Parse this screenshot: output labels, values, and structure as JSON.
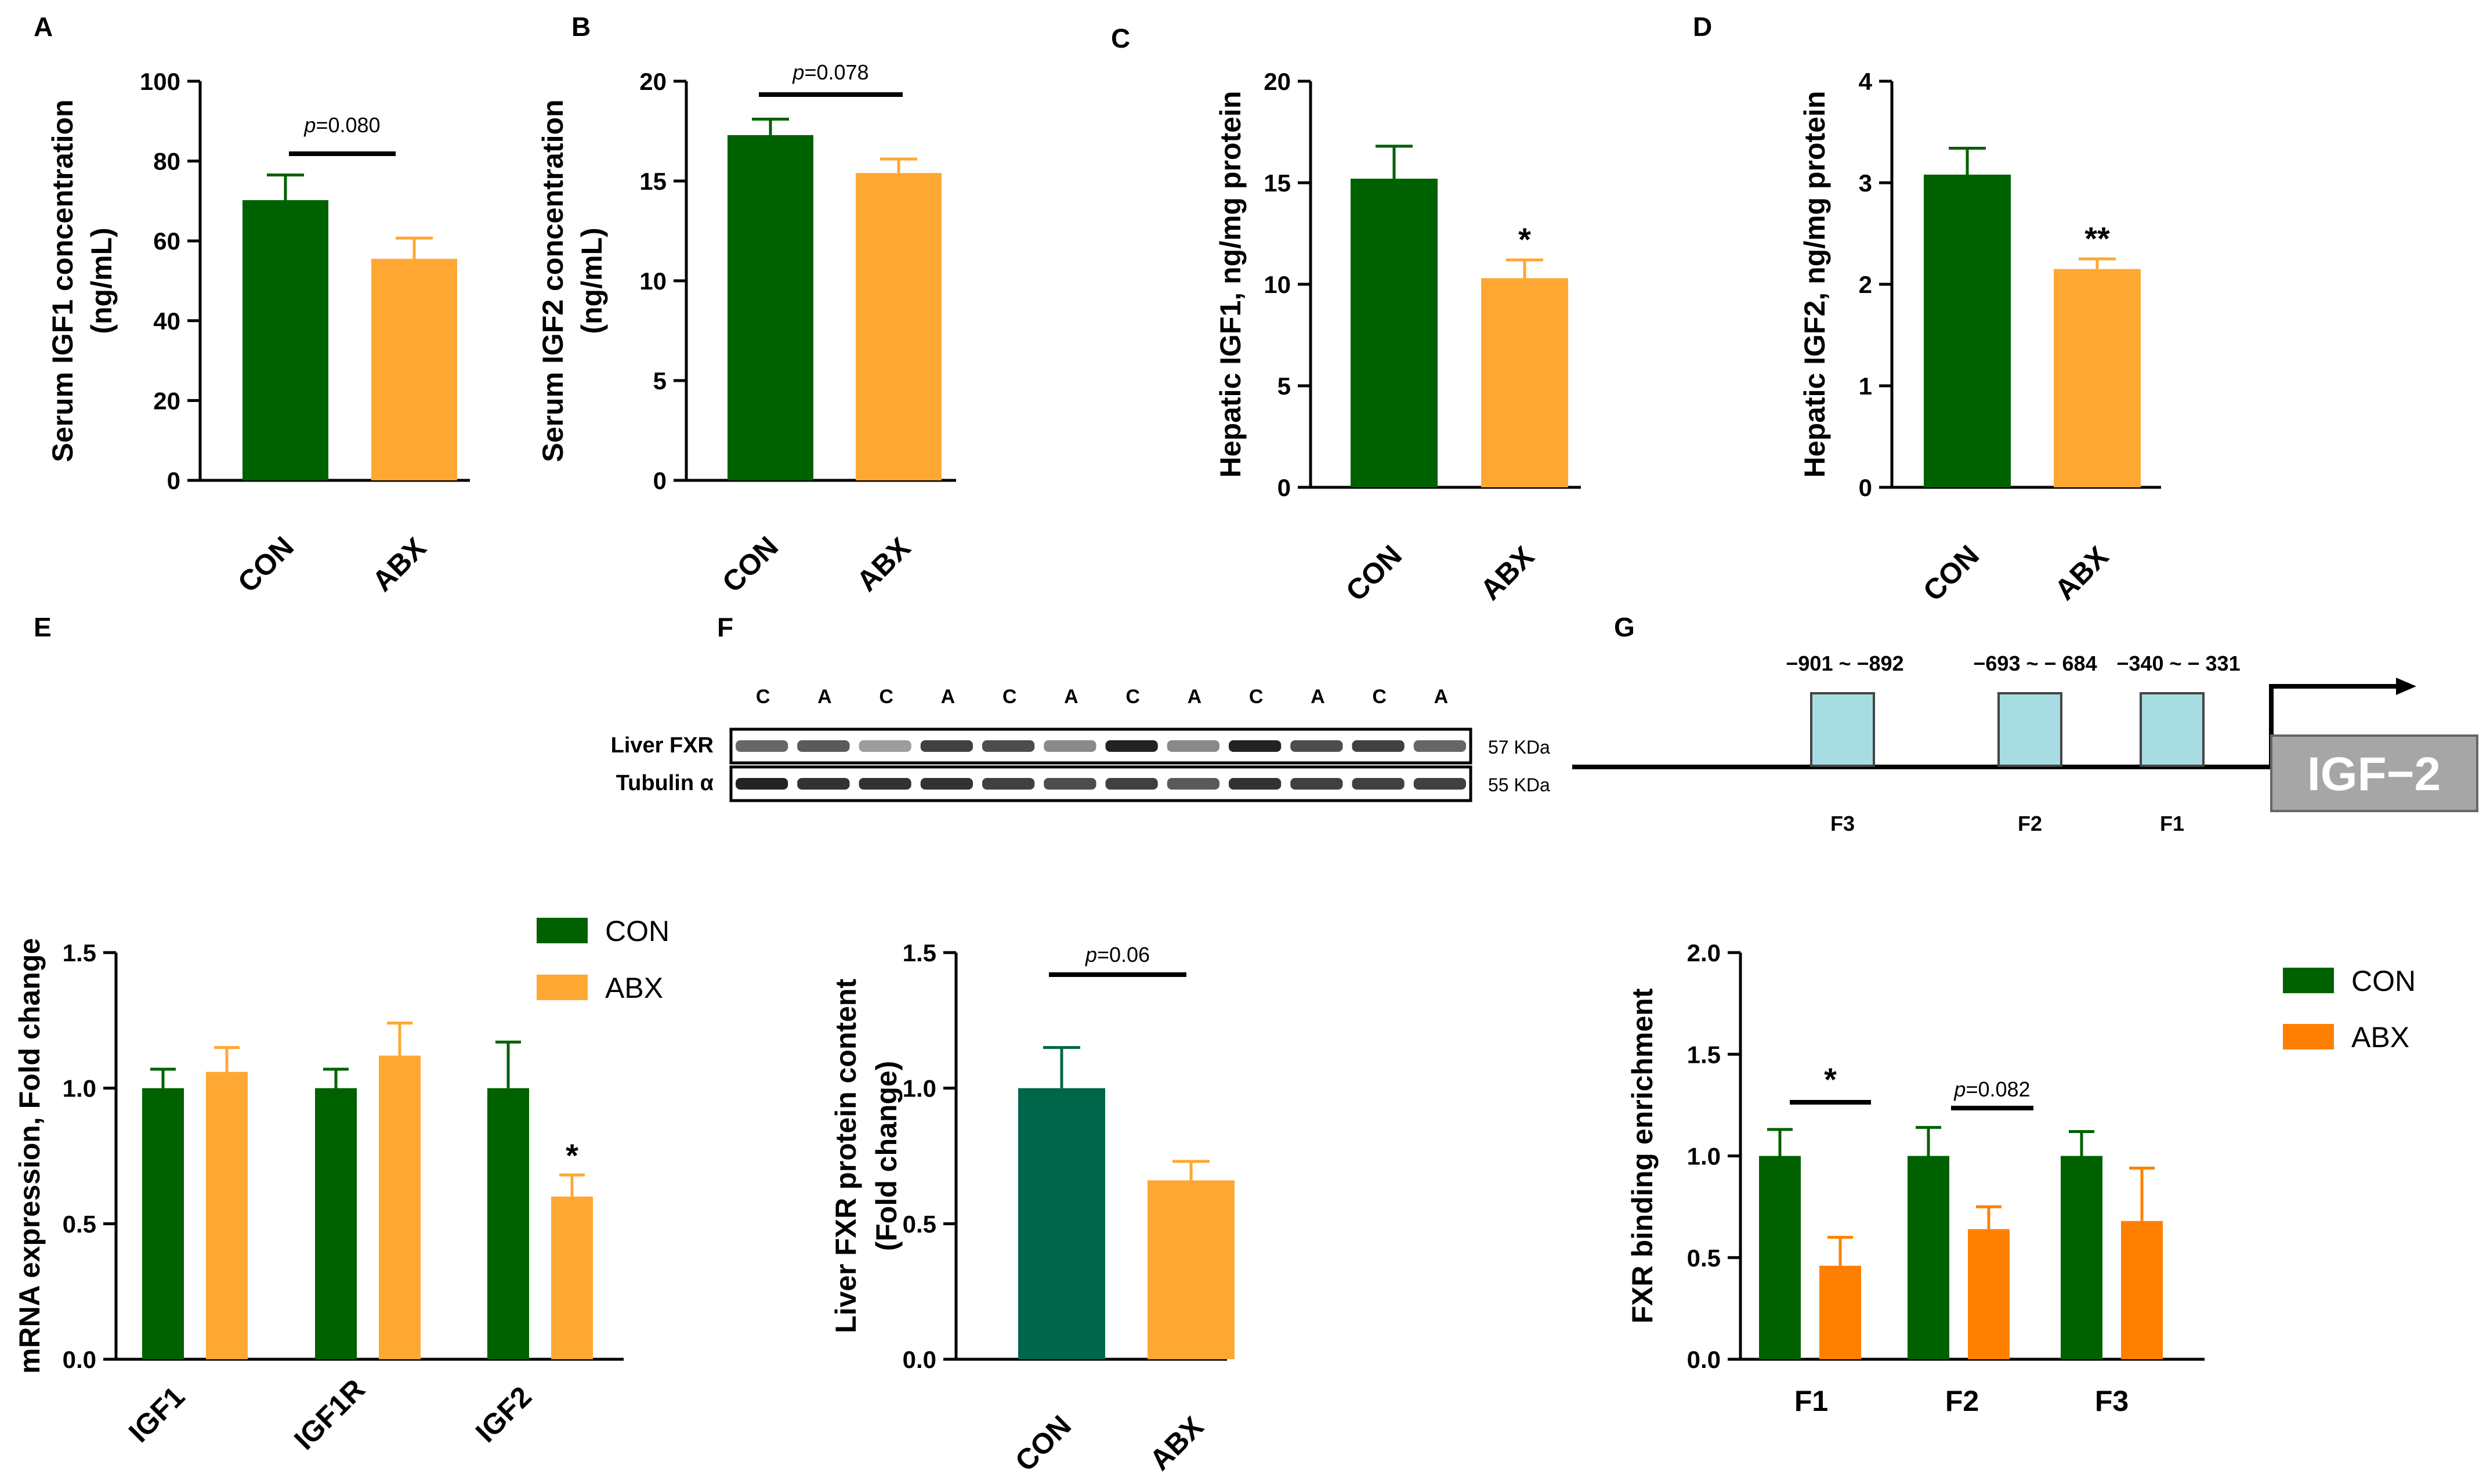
{
  "colors": {
    "con": "#006100",
    "abx": "#FFA733",
    "con_f": "#00664A",
    "abx_g": "#FF8000",
    "promoter_box": "#A8DCE3",
    "gene_box": "#A6A6A6"
  },
  "chart_data": [
    {
      "panel": "A",
      "type": "bar",
      "categories": [
        "CON",
        "ABX"
      ],
      "values": [
        70.2,
        55.5
      ],
      "errors": [
        6.3,
        5.2
      ],
      "ylabel_lines": [
        "Serum IGF1  concentration",
        "(ng/mL)"
      ],
      "ylim": [
        0,
        100
      ],
      "yticks": [
        "0",
        "20",
        "40",
        "60",
        "80",
        "100"
      ],
      "annotation": {
        "prefix": "p",
        "text": "=0.080"
      },
      "stars": [
        "",
        ""
      ]
    },
    {
      "panel": "B",
      "type": "bar",
      "categories": [
        "CON",
        "ABX"
      ],
      "values": [
        17.3,
        15.4
      ],
      "errors": [
        0.8,
        0.7
      ],
      "ylabel_lines": [
        "Serum IGF2  concentration",
        "(ng/mL)"
      ],
      "ylim": [
        0,
        20
      ],
      "yticks": [
        "0",
        "5",
        "10",
        "15",
        "20"
      ],
      "annotation": {
        "prefix": "p",
        "text": "=0.078"
      },
      "stars": [
        "",
        ""
      ]
    },
    {
      "panel": "C",
      "type": "bar",
      "categories": [
        "CON",
        "ABX"
      ],
      "values": [
        15.2,
        10.3
      ],
      "errors": [
        1.6,
        0.9
      ],
      "ylabel_lines": [
        "Hepatic IGF1, ng/mg protein"
      ],
      "ylim": [
        0,
        20
      ],
      "yticks": [
        "0",
        "5",
        "10",
        "15",
        "20"
      ],
      "annotation": null,
      "stars": [
        "",
        "*"
      ]
    },
    {
      "panel": "D",
      "type": "bar",
      "categories": [
        "CON",
        "ABX"
      ],
      "values": [
        3.08,
        2.15
      ],
      "errors": [
        0.26,
        0.1
      ],
      "ylabel_lines": [
        "Hepatic IGF2, ng/mg protein"
      ],
      "ylim": [
        0,
        4
      ],
      "yticks": [
        "0",
        "1",
        "2",
        "3",
        "4"
      ],
      "annotation": null,
      "stars": [
        "",
        "**"
      ]
    },
    {
      "panel": "E",
      "type": "bar",
      "categories": [
        "IGF1",
        "IGF1R",
        "IGF2"
      ],
      "series": [
        {
          "name": "CON",
          "values": [
            1.0,
            1.0,
            1.0
          ],
          "errors": [
            0.07,
            0.07,
            0.17
          ]
        },
        {
          "name": "ABX",
          "values": [
            1.06,
            1.12,
            0.6
          ],
          "errors": [
            0.09,
            0.12,
            0.08
          ]
        }
      ],
      "ylabel_lines": [
        "mRNA expression, Fold change"
      ],
      "ylim": [
        0,
        1.5
      ],
      "yticks": [
        "0.0",
        "0.5",
        "1.0",
        "1.5"
      ],
      "stars": [
        [
          "",
          ""
        ],
        [
          "",
          ""
        ],
        [
          "",
          "*"
        ]
      ],
      "legend": [
        "CON",
        "ABX"
      ]
    },
    {
      "panel": "F",
      "type": "bar",
      "categories": [
        "CON",
        "ABX"
      ],
      "values": [
        1.0,
        0.66
      ],
      "errors": [
        0.15,
        0.07
      ],
      "ylabel_lines": [
        "Liver FXR protein content",
        "(Fold change)"
      ],
      "ylim": [
        0,
        1.5
      ],
      "yticks": [
        "0.0",
        "0.5",
        "1.0",
        "1.5"
      ],
      "annotation": {
        "prefix": "p",
        "text": "=0.06"
      },
      "stars": [
        "",
        ""
      ]
    },
    {
      "panel": "G",
      "type": "bar",
      "categories": [
        "F1",
        "F2",
        "F3"
      ],
      "series": [
        {
          "name": "CON",
          "values": [
            1.0,
            1.0,
            1.0
          ],
          "errors": [
            0.13,
            0.14,
            0.12
          ]
        },
        {
          "name": "ABX",
          "values": [
            0.46,
            0.64,
            0.68
          ],
          "errors": [
            0.14,
            0.11,
            0.26
          ]
        }
      ],
      "ylabel_lines": [
        "FXR binding enrichment"
      ],
      "ylim": [
        0,
        2.0
      ],
      "yticks": [
        "0.0",
        "0.5",
        "1.0",
        "1.5",
        "2.0"
      ],
      "group_annotations": [
        {
          "category": "F1",
          "text": "*",
          "prefix": ""
        },
        {
          "category": "F2",
          "text": "=0.082",
          "prefix": "p"
        }
      ],
      "legend": [
        "CON",
        "ABX"
      ]
    }
  ],
  "western_blot": {
    "lanes": [
      "C",
      "A",
      "C",
      "A",
      "C",
      "A",
      "C",
      "A",
      "C",
      "A",
      "C",
      "A"
    ],
    "rows": [
      {
        "label": "Liver FXR",
        "kda": "57 KDa",
        "intensity": [
          0.7,
          0.75,
          0.45,
          0.85,
          0.8,
          0.55,
          0.95,
          0.55,
          0.95,
          0.8,
          0.85,
          0.7
        ]
      },
      {
        "label": "Tubulin α",
        "kda": "55 KDa",
        "intensity": [
          0.95,
          0.9,
          0.9,
          0.9,
          0.85,
          0.8,
          0.85,
          0.75,
          0.9,
          0.85,
          0.85,
          0.85
        ]
      }
    ]
  },
  "promoter": {
    "regions": [
      "−901 ~ −892",
      "−693 ~ − 684",
      "−340 ~ − 331"
    ],
    "fragments": [
      "F3",
      "F2",
      "F1"
    ],
    "gene": "IGF−2"
  }
}
